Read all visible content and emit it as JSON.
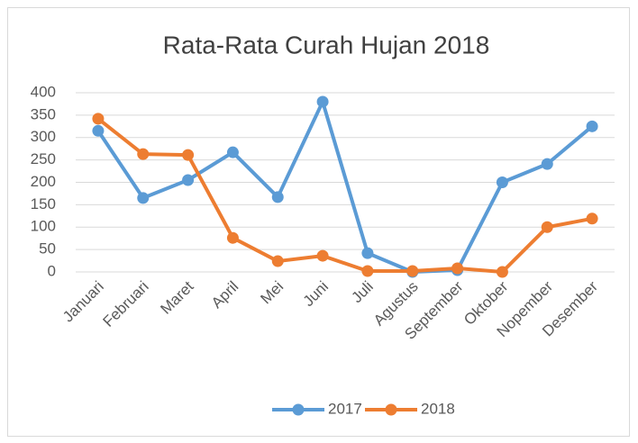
{
  "chart_data": {
    "type": "line",
    "title": "Rata-Rata Curah Hujan 2018",
    "categories": [
      "Januari",
      "Februari",
      "Maret",
      "April",
      "Mei",
      "Juni",
      "Juli",
      "Agustus",
      "September",
      "Oktober",
      "Nopember",
      "Desember"
    ],
    "series": [
      {
        "name": "2017",
        "color": "#5b9bd5",
        "values": [
          315,
          165,
          205,
          267,
          167,
          380,
          42,
          0,
          4,
          200,
          241,
          325
        ]
      },
      {
        "name": "2018",
        "color": "#ed7d31",
        "values": [
          342,
          263,
          261,
          76,
          24,
          36,
          2,
          2,
          8,
          0,
          100,
          119
        ]
      }
    ],
    "ylim": [
      0,
      400
    ],
    "yticks": [
      0,
      50,
      100,
      150,
      200,
      250,
      300,
      350,
      400
    ],
    "grid": true,
    "legend": "bottom"
  }
}
